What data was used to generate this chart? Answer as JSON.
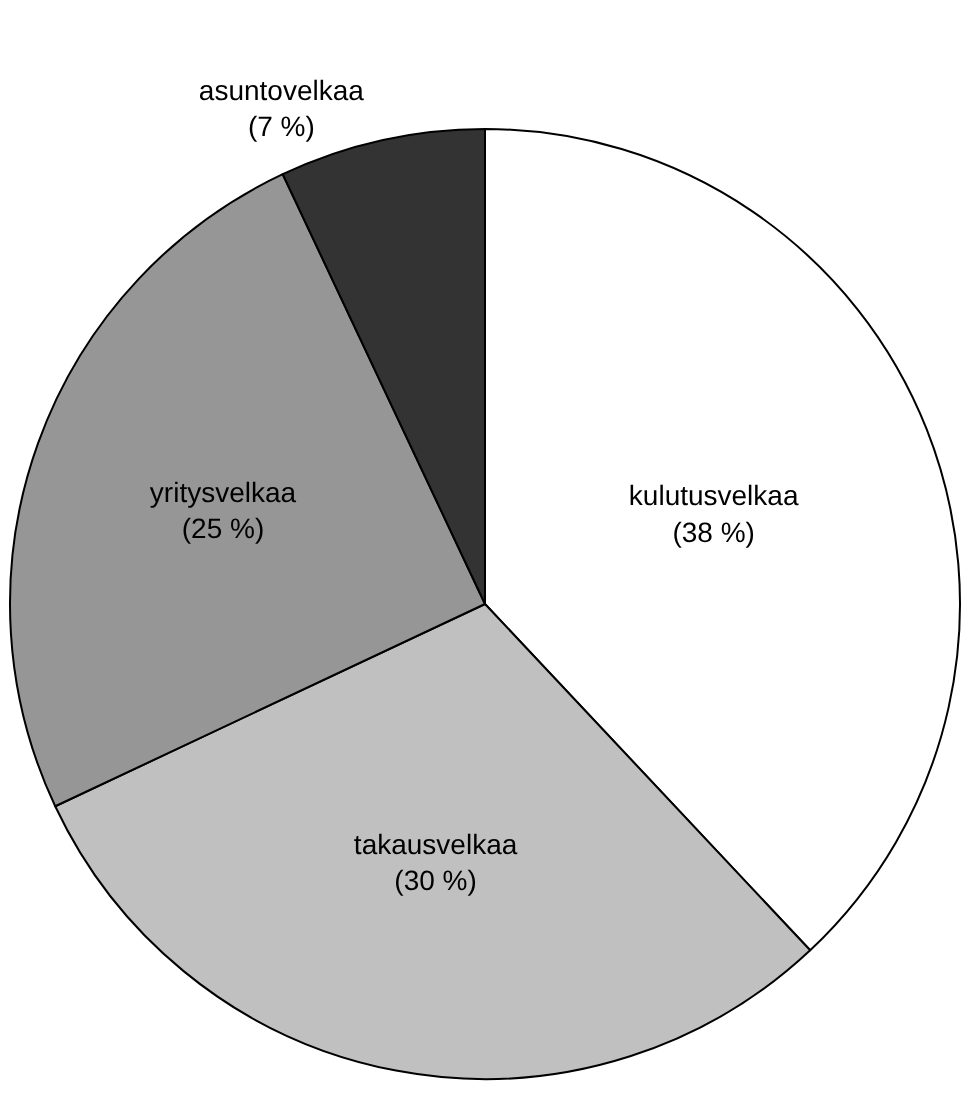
{
  "chart_data": {
    "type": "pie",
    "categories": [
      "kulutusvelkaa",
      "takausvelkaa",
      "yritysvelkaa",
      "asuntovelkaa"
    ],
    "values": [
      38,
      30,
      25,
      7
    ],
    "value_labels": [
      "(38 %)",
      "(30 %)",
      "(25 %)",
      "(7 %)"
    ],
    "colors": [
      "#ffffff",
      "#c0c0c0",
      "#969696",
      "#333333"
    ],
    "legend": false
  }
}
